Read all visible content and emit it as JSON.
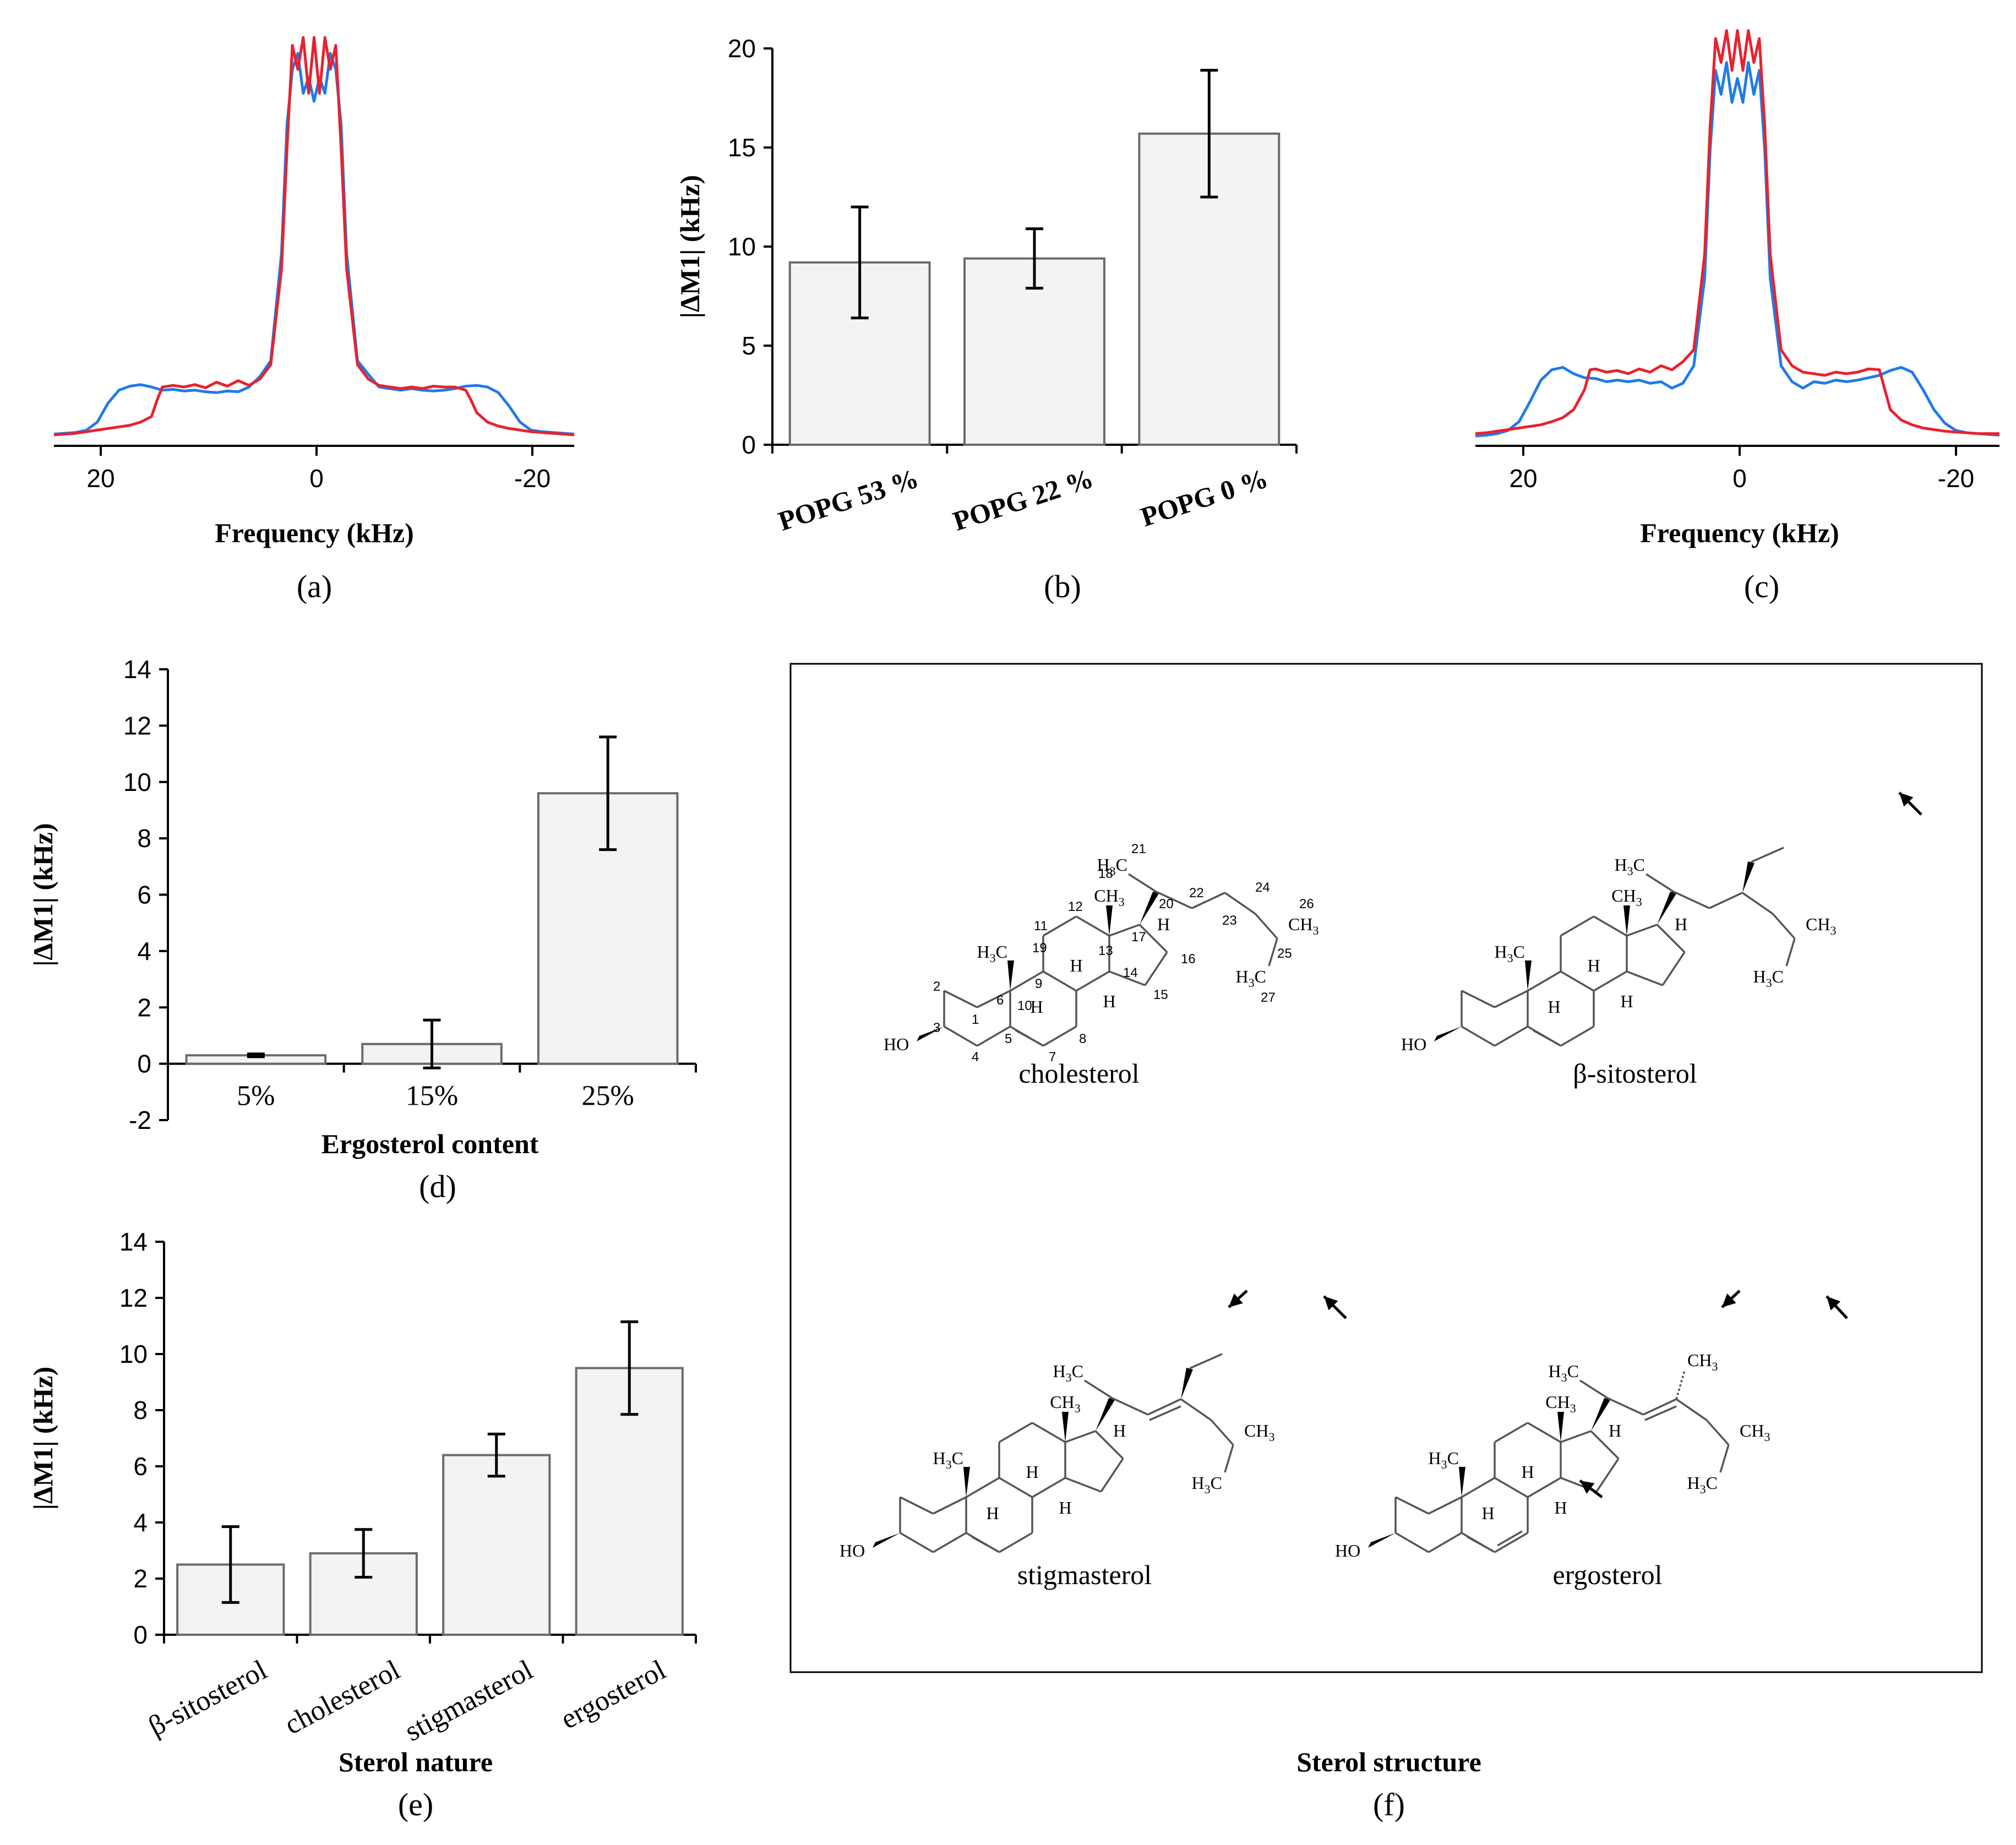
{
  "chart_data": [
    {
      "id": "a",
      "type": "line",
      "panel_label": "(a)",
      "xlabel": "Frequency (kHz)",
      "xticks": [
        "20",
        "0",
        "-20"
      ],
      "xlim": [
        24,
        -24
      ],
      "series": [
        {
          "name": "blue spectrum",
          "color": "#1f7be8",
          "x": [
            24,
            23,
            22,
            21,
            20,
            19,
            18,
            17,
            16,
            15,
            14,
            13,
            12,
            11,
            10,
            9,
            8,
            7,
            6,
            5,
            4,
            3,
            2.5,
            2,
            1.5,
            1,
            0.5,
            0,
            -0.5,
            -1,
            -1.5,
            -2,
            -2.5,
            -3,
            -4,
            -5,
            -6,
            -7,
            -8,
            -9,
            -10,
            -11,
            -12,
            -13,
            -14,
            -15,
            -16,
            -17,
            -18,
            -19,
            -20,
            -21,
            -22,
            -23,
            -24
          ],
          "y": [
            0.03,
            0.04,
            0.05,
            0.08,
            0.18,
            0.42,
            0.58,
            0.63,
            0.65,
            0.62,
            0.58,
            0.59,
            0.57,
            0.58,
            0.56,
            0.55,
            0.57,
            0.56,
            0.62,
            0.75,
            0.95,
            2.3,
            3.9,
            4.6,
            4.8,
            4.3,
            4.5,
            4.2,
            4.5,
            4.3,
            4.8,
            4.6,
            3.9,
            2.3,
            0.95,
            0.78,
            0.62,
            0.6,
            0.58,
            0.6,
            0.58,
            0.57,
            0.58,
            0.6,
            0.63,
            0.64,
            0.62,
            0.55,
            0.38,
            0.18,
            0.08,
            0.06,
            0.05,
            0.04,
            0.03
          ]
        },
        {
          "name": "red spectrum",
          "color": "#e8222e",
          "x": [
            24,
            23,
            22,
            21,
            20,
            19,
            18,
            17,
            16,
            15,
            14.5,
            14,
            13,
            12,
            11,
            10,
            9,
            8,
            7,
            6,
            5,
            4,
            3,
            2.5,
            2,
            1.5,
            1,
            0.5,
            0,
            -0.5,
            -1,
            -1.5,
            -2,
            -2.5,
            -3,
            -4,
            -5,
            -6,
            -7,
            -8,
            -9,
            -10,
            -11,
            -12,
            -13,
            -14,
            -14.5,
            -15,
            -16,
            -17,
            -18,
            -19,
            -20,
            -21,
            -22,
            -23,
            -24
          ],
          "y": [
            0.02,
            0.03,
            0.04,
            0.06,
            0.08,
            0.1,
            0.12,
            0.14,
            0.18,
            0.25,
            0.45,
            0.62,
            0.64,
            0.62,
            0.65,
            0.61,
            0.68,
            0.63,
            0.7,
            0.64,
            0.72,
            0.9,
            2.1,
            3.6,
            4.9,
            4.6,
            5.0,
            4.3,
            5.0,
            4.3,
            5.0,
            4.6,
            4.9,
            3.6,
            2.1,
            0.9,
            0.72,
            0.64,
            0.62,
            0.6,
            0.62,
            0.6,
            0.63,
            0.62,
            0.62,
            0.58,
            0.45,
            0.3,
            0.18,
            0.13,
            0.1,
            0.08,
            0.06,
            0.05,
            0.04,
            0.03,
            0.02
          ]
        }
      ]
    },
    {
      "id": "b",
      "type": "bar",
      "panel_label": "(b)",
      "ylabel": "|ΔM1| (kHz)",
      "categories": [
        "POPG 53 %",
        "POPG 22 %",
        "POPG 0 %"
      ],
      "values": [
        9.2,
        9.4,
        15.7
      ],
      "errors": [
        2.8,
        1.5,
        3.2
      ],
      "ylim": [
        0,
        20
      ],
      "yticks": [
        "0",
        "5",
        "10",
        "15",
        "20"
      ]
    },
    {
      "id": "c",
      "type": "line",
      "panel_label": "(c)",
      "xlabel": "Frequency (kHz)",
      "xticks": [
        "20",
        "0",
        "-20"
      ],
      "xlim": [
        24,
        -24
      ],
      "series": [
        {
          "name": "blue spectrum",
          "color": "#1f7be8",
          "x": [
            24,
            23,
            22,
            21,
            20,
            19,
            18,
            17,
            16,
            15,
            14,
            13,
            12,
            11,
            10,
            9,
            8,
            7,
            6,
            5,
            4,
            3,
            2.5,
            2,
            1.5,
            1,
            0.5,
            0,
            -0.5,
            -1,
            -1.5,
            -2,
            -2.5,
            -3,
            -4,
            -5,
            -6,
            -7,
            -8,
            -9,
            -10,
            -11,
            -12,
            -13,
            -14,
            -15,
            -16,
            -17,
            -18,
            -19,
            -20,
            -21,
            -22,
            -23,
            -24
          ],
          "y": [
            0.02,
            0.03,
            0.05,
            0.09,
            0.2,
            0.45,
            0.72,
            0.85,
            0.88,
            0.8,
            0.75,
            0.74,
            0.7,
            0.72,
            0.7,
            0.72,
            0.68,
            0.7,
            0.62,
            0.68,
            0.9,
            2.0,
            3.6,
            4.6,
            4.3,
            4.7,
            4.2,
            4.5,
            4.2,
            4.7,
            4.3,
            4.6,
            3.6,
            2.0,
            0.9,
            0.7,
            0.62,
            0.7,
            0.68,
            0.72,
            0.7,
            0.72,
            0.75,
            0.78,
            0.84,
            0.88,
            0.82,
            0.6,
            0.35,
            0.18,
            0.09,
            0.06,
            0.05,
            0.04,
            0.03
          ]
        },
        {
          "name": "red spectrum",
          "color": "#e8222e",
          "x": [
            24,
            23,
            22,
            21,
            20,
            19,
            18,
            17,
            16,
            15,
            14,
            13.5,
            13,
            12,
            11,
            10,
            9,
            8,
            7,
            6,
            5,
            4,
            3,
            2.5,
            2,
            1.5,
            1,
            0.5,
            0,
            -0.5,
            -1,
            -1.5,
            -2,
            -2.5,
            -3,
            -4,
            -5,
            -6,
            -7,
            -8,
            -9,
            -10,
            -11,
            -12,
            -13,
            -13.5,
            -14,
            -15,
            -16,
            -17,
            -18,
            -19,
            -20,
            -21,
            -22,
            -23,
            -24
          ],
          "y": [
            0.05,
            0.06,
            0.08,
            0.1,
            0.12,
            0.14,
            0.16,
            0.2,
            0.25,
            0.35,
            0.6,
            0.85,
            0.86,
            0.82,
            0.84,
            0.8,
            0.86,
            0.82,
            0.9,
            0.85,
            0.95,
            1.1,
            2.3,
            3.9,
            5.0,
            4.7,
            5.1,
            4.6,
            5.1,
            4.6,
            5.1,
            4.7,
            5.0,
            3.9,
            2.3,
            1.1,
            0.9,
            0.82,
            0.8,
            0.78,
            0.82,
            0.8,
            0.82,
            0.86,
            0.85,
            0.6,
            0.35,
            0.22,
            0.16,
            0.12,
            0.1,
            0.08,
            0.07,
            0.06,
            0.05,
            0.05,
            0.05
          ]
        }
      ]
    },
    {
      "id": "d",
      "type": "bar",
      "panel_label": "(d)",
      "ylabel": "|ΔM1| (kHz)",
      "xlabel": "Ergosterol content",
      "categories": [
        "5%",
        "15%",
        "25%"
      ],
      "values": [
        0.3,
        0.7,
        9.6
      ],
      "errors": [
        0.05,
        0.85,
        2.0
      ],
      "ylim": [
        -2,
        14
      ],
      "yticks": [
        "-2",
        "0",
        "2",
        "4",
        "6",
        "8",
        "10",
        "12",
        "14"
      ]
    },
    {
      "id": "e",
      "type": "bar",
      "panel_label": "(e)",
      "ylabel": "|ΔM1| (kHz)",
      "xlabel": "Sterol nature",
      "categories": [
        "β-sitosterol",
        "cholesterol",
        "stigmasterol",
        "ergosterol"
      ],
      "values": [
        2.5,
        2.9,
        6.4,
        9.5
      ],
      "errors": [
        1.35,
        0.85,
        0.75,
        1.65
      ],
      "ylim": [
        0,
        14
      ],
      "yticks": [
        "0",
        "2",
        "4",
        "6",
        "8",
        "10",
        "12",
        "14"
      ]
    }
  ],
  "panel_f": {
    "panel_label": "(f)",
    "title": "Sterol structure",
    "molecules": [
      "cholesterol",
      "β-sitosterol",
      "stigmasterol",
      "ergosterol"
    ],
    "atoms": {
      "h3c": "H3C",
      "ch3": "CH3",
      "h": "H",
      "ho": "HO"
    },
    "carbon_numbers": [
      "1",
      "2",
      "3",
      "4",
      "5",
      "6",
      "7",
      "8",
      "9",
      "10",
      "11",
      "12",
      "13",
      "14",
      "15",
      "16",
      "17",
      "18",
      "19",
      "20",
      "21",
      "22",
      "23",
      "24",
      "25",
      "26",
      "27"
    ]
  }
}
